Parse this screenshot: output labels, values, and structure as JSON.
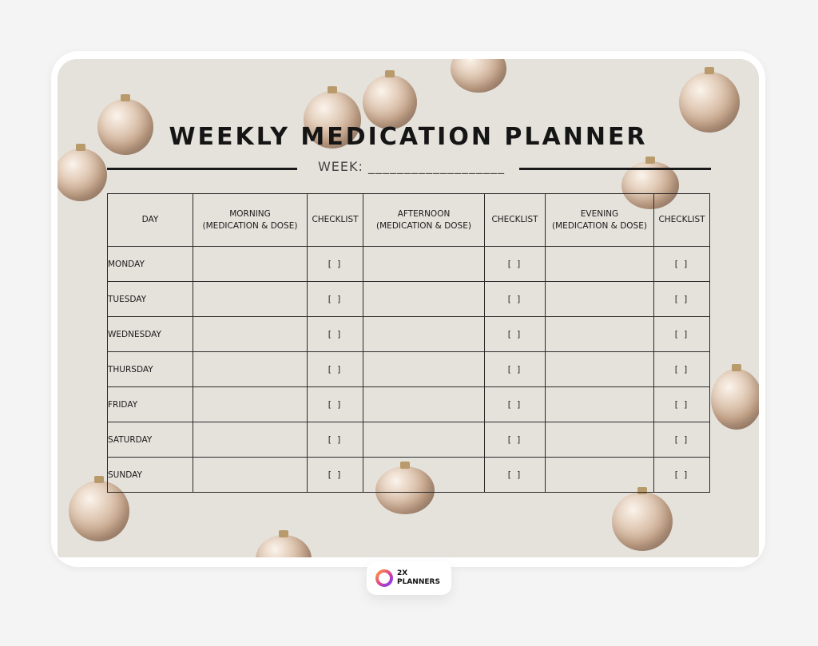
{
  "planner": {
    "title": "WEEKLY MEDICATION PLANNER",
    "week_label": "WEEK: ___________________",
    "headers": {
      "day": "DAY",
      "morning": "MORNING",
      "morning_sub": "(MEDICATION & DOSE)",
      "checklist": "CHECKLIST",
      "afternoon": "AFTERNOON",
      "afternoon_sub": "(MEDICATION & DOSE)",
      "evening": "EVENING",
      "evening_sub": "(MEDICATION & DOSE)"
    },
    "checkbox": "[ ]",
    "days": [
      "MONDAY",
      "TUESDAY",
      "WEDNESDAY",
      "THURSDAY",
      "FRIDAY",
      "SATURDAY",
      "SUNDAY"
    ]
  },
  "brand": {
    "line1": "2X",
    "line2": "PLANNERS"
  },
  "colors": {
    "sheet_background": "#e5e2dc",
    "ink": "#151515",
    "ornament": "#c9a98f"
  }
}
